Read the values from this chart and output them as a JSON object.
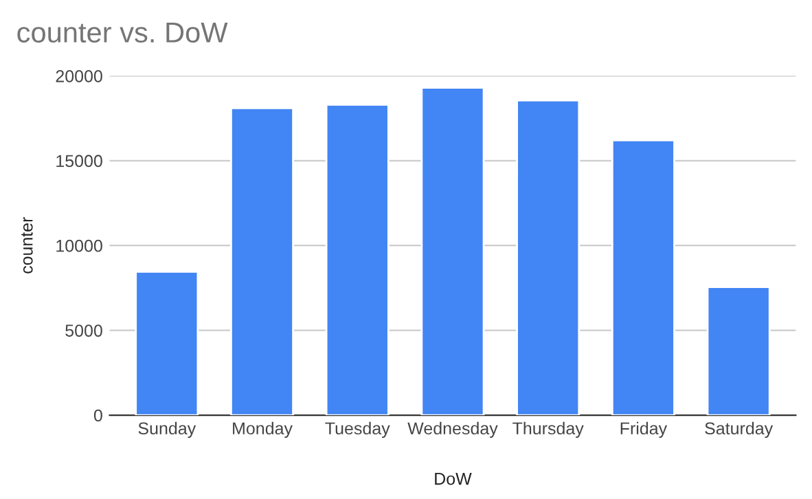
{
  "chart_data": {
    "type": "bar",
    "title": "counter vs. DoW",
    "xlabel": "DoW",
    "ylabel": "counter",
    "categories": [
      "Sunday",
      "Monday",
      "Tuesday",
      "Wednesday",
      "Thursday",
      "Friday",
      "Saturday"
    ],
    "values": [
      8450,
      18100,
      18300,
      19300,
      18550,
      16200,
      7550
    ],
    "color": "#4285f4",
    "ylim": [
      0,
      20000
    ],
    "yticks": [
      0,
      5000,
      10000,
      15000,
      20000
    ],
    "grid": "y",
    "legend": false
  }
}
